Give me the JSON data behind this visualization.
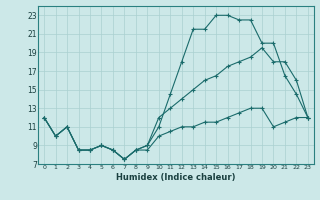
{
  "xlabel": "Humidex (Indice chaleur)",
  "bg_color": "#cce8e8",
  "grid_color": "#aad0d0",
  "line_color": "#1a6b6b",
  "xlim": [
    -0.5,
    23.5
  ],
  "ylim": [
    7,
    24
  ],
  "xticks": [
    0,
    1,
    2,
    3,
    4,
    5,
    6,
    7,
    8,
    9,
    10,
    11,
    12,
    13,
    14,
    15,
    16,
    17,
    18,
    19,
    20,
    21,
    22,
    23
  ],
  "yticks": [
    7,
    9,
    11,
    13,
    15,
    17,
    19,
    21,
    23
  ],
  "line1_x": [
    0,
    1,
    2,
    3,
    4,
    5,
    6,
    7,
    8,
    9,
    10,
    11,
    12,
    13,
    14,
    15,
    16,
    17,
    18,
    19,
    20,
    21,
    22,
    23
  ],
  "line1_y": [
    12,
    10,
    11,
    8.5,
    8.5,
    9,
    8.5,
    7.5,
    8.5,
    9,
    11,
    14.5,
    18,
    21.5,
    21.5,
    23,
    23,
    22.5,
    22.5,
    20,
    20,
    16.5,
    14.5,
    12
  ],
  "line2_x": [
    0,
    1,
    2,
    3,
    4,
    5,
    6,
    7,
    8,
    9,
    10,
    11,
    12,
    13,
    14,
    15,
    16,
    17,
    18,
    19,
    20,
    21,
    22,
    23
  ],
  "line2_y": [
    12,
    10,
    11,
    8.5,
    8.5,
    9,
    8.5,
    7.5,
    8.5,
    9,
    12,
    13,
    14,
    15,
    16,
    16.5,
    17.5,
    18,
    18.5,
    19.5,
    18,
    18,
    16,
    12
  ],
  "line3_x": [
    0,
    1,
    2,
    3,
    4,
    5,
    6,
    7,
    8,
    9,
    10,
    11,
    12,
    13,
    14,
    15,
    16,
    17,
    18,
    19,
    20,
    21,
    22,
    23
  ],
  "line3_y": [
    12,
    10,
    11,
    8.5,
    8.5,
    9,
    8.5,
    7.5,
    8.5,
    8.5,
    10,
    10.5,
    11,
    11,
    11.5,
    11.5,
    12,
    12.5,
    13,
    13,
    11,
    11.5,
    12,
    12
  ]
}
